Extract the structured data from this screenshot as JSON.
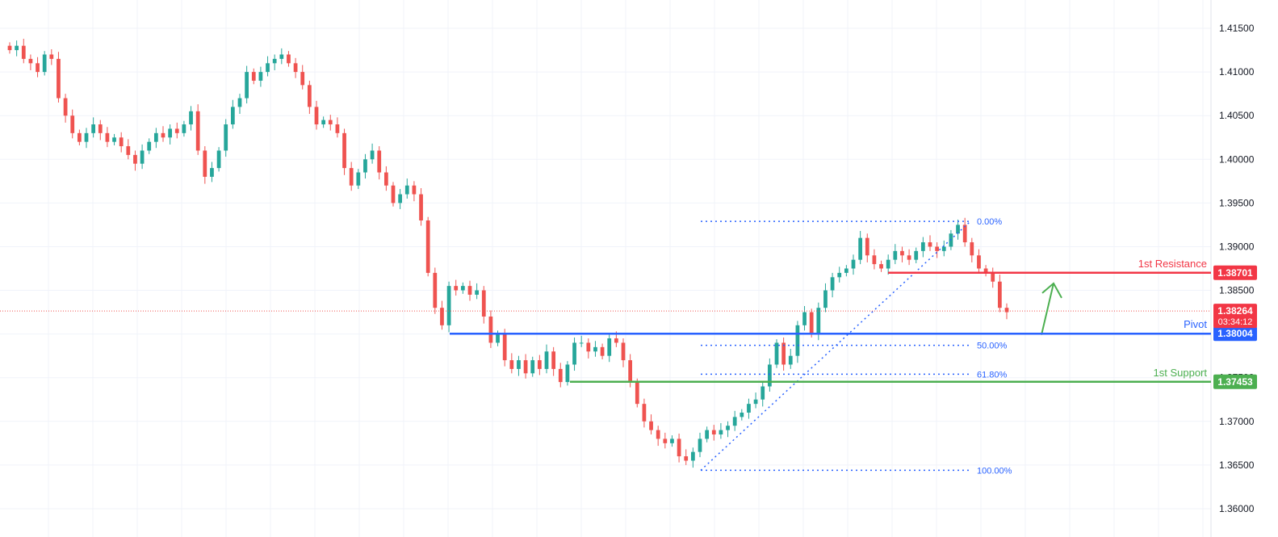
{
  "chart_data": {
    "type": "candlestick",
    "title": "",
    "ylim": [
      1.3575,
      1.4175
    ],
    "y_ticks": [
      "1.41500",
      "1.41000",
      "1.40500",
      "1.40000",
      "1.39500",
      "1.39000",
      "1.38500",
      "1.38000",
      "1.37500",
      "1.37000",
      "1.36500",
      "1.36000"
    ],
    "grid": true,
    "colors": {
      "up": "#26a69a",
      "down": "#ef5350",
      "resistance": "#f23645",
      "pivot": "#2962ff",
      "support": "#4caf50",
      "fib": "#2962ff"
    },
    "levels": [
      {
        "name": "1st Resistance",
        "price": 1.38701,
        "tag": "1.38701",
        "color": "#f23645"
      },
      {
        "name": "Pivot",
        "price": 1.38004,
        "tag": "1.38004",
        "color": "#2962ff"
      },
      {
        "name": "1st Support",
        "price": 1.37453,
        "tag": "1.37453",
        "color": "#4caf50"
      }
    ],
    "current": {
      "price": 1.38264,
      "tag": "1.38264",
      "countdown": "03:34:12",
      "color": "#f23645"
    },
    "fibonacci": [
      {
        "label": "0.00%",
        "price": 1.3929
      },
      {
        "label": "50.00%",
        "price": 1.3787
      },
      {
        "label": "61.80%",
        "price": 1.3754
      },
      {
        "label": "100.00%",
        "price": 1.3644
      }
    ],
    "series_closes": [
      1.4125,
      1.413,
      1.4115,
      1.411,
      1.41,
      1.412,
      1.4115,
      1.407,
      1.405,
      1.403,
      1.402,
      1.403,
      1.404,
      1.403,
      1.402,
      1.4025,
      1.4015,
      1.4005,
      1.3995,
      1.401,
      1.402,
      1.403,
      1.4025,
      1.4035,
      1.403,
      1.404,
      1.4055,
      1.401,
      1.398,
      1.399,
      1.401,
      1.404,
      1.406,
      1.407,
      1.41,
      1.409,
      1.41,
      1.411,
      1.4115,
      1.412,
      1.411,
      1.41,
      1.4085,
      1.406,
      1.404,
      1.4045,
      1.404,
      1.403,
      1.399,
      1.397,
      1.3985,
      1.4,
      1.401,
      1.3985,
      1.397,
      1.395,
      1.396,
      1.397,
      1.396,
      1.393,
      1.387,
      1.383,
      1.381,
      1.3855,
      1.385,
      1.3855,
      1.3845,
      1.385,
      1.382,
      1.379,
      1.38,
      1.377,
      1.376,
      1.377,
      1.3755,
      1.377,
      1.376,
      1.378,
      1.376,
      1.3745,
      1.3765,
      1.379,
      1.379,
      1.378,
      1.3785,
      1.3775,
      1.3795,
      1.379,
      1.377,
      1.3745,
      1.372,
      1.37,
      1.369,
      1.368,
      1.3675,
      1.368,
      1.366,
      1.3655,
      1.3665,
      1.368,
      1.369,
      1.3685,
      1.369,
      1.3695,
      1.3705,
      1.371,
      1.372,
      1.3725,
      1.374,
      1.3765,
      1.379,
      1.3765,
      1.3775,
      1.381,
      1.3825,
      1.38,
      1.383,
      1.385,
      1.3865,
      1.387,
      1.3875,
      1.3885,
      1.391,
      1.389,
      1.388,
      1.3875,
      1.3885,
      1.3895,
      1.389,
      1.3885,
      1.3895,
      1.3905,
      1.39,
      1.3895,
      1.39,
      1.3915,
      1.3925,
      1.3905,
      1.389,
      1.3875,
      1.387,
      1.386,
      1.383,
      1.3825
    ]
  }
}
